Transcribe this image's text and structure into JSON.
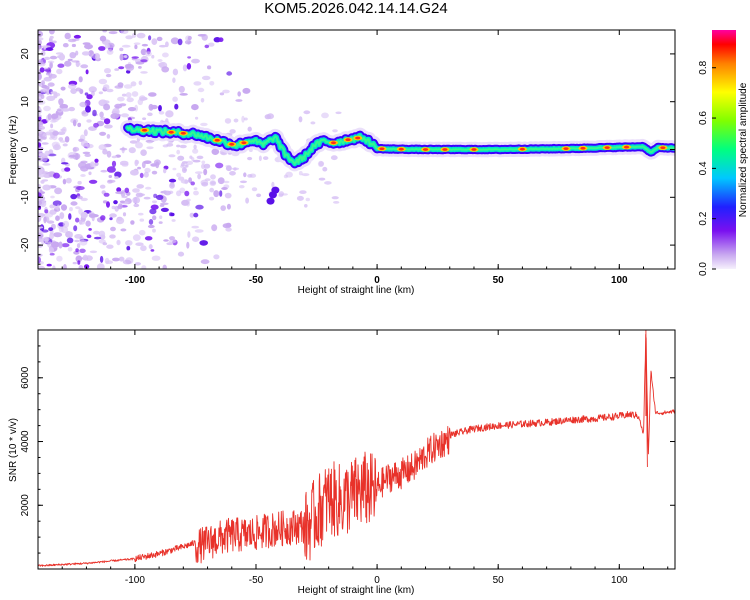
{
  "title": "KOM5.2026.042.14.14.G24",
  "colors": {
    "snr_line": "#e8322a",
    "ridge_core": "#ff2a1a",
    "ridge_mid": "#00e0c8",
    "ridge_outer": "#3a00ff",
    "noise_light": "#c8a8f0",
    "noise_dark": "#5a10e8"
  },
  "chart_data": [
    {
      "type": "heatmap",
      "name": "spectrogram",
      "xlabel": "Height of straight line (km)",
      "ylabel": "Frequency (Hz)",
      "xlim": [
        -140,
        123
      ],
      "ylim": [
        -25,
        25
      ],
      "xticks": [
        -100,
        -50,
        0,
        50,
        100
      ],
      "xtick_labels": [
        "-100",
        "-50",
        "0",
        "50",
        "100"
      ],
      "yticks": [
        -20,
        -10,
        0,
        10,
        20
      ],
      "ytick_labels": [
        "-20",
        "-10",
        "0",
        "10",
        "20"
      ],
      "ridge": {
        "x": [
          -103,
          -95,
          -85,
          -75,
          -65,
          -58,
          -52,
          -47,
          -42,
          -38,
          -34,
          -30,
          -26,
          -22,
          -18,
          -14,
          -10,
          -6,
          -3,
          0,
          5,
          20,
          50,
          80,
          110,
          113,
          116,
          123
        ],
        "y": [
          4.2,
          4.0,
          3.6,
          3.2,
          1.8,
          0.8,
          2.0,
          1.0,
          2.6,
          -1.0,
          -2.8,
          -1.5,
          0.8,
          1.8,
          1.4,
          1.8,
          2.3,
          2.5,
          1.5,
          0.2,
          0.1,
          0.0,
          0.0,
          0.2,
          0.6,
          -0.6,
          0.4,
          0.3
        ]
      },
      "colorbar": {
        "label": "Normalized spectral amplitude",
        "range": [
          0.0,
          0.95
        ],
        "ticks": [
          0.0,
          0.2,
          0.4,
          0.6,
          0.8
        ],
        "tick_labels": [
          "0.0",
          "0.2",
          "0.4",
          "0.6",
          "0.8"
        ]
      }
    },
    {
      "type": "line",
      "name": "snr",
      "xlabel": "Height of straight line (km)",
      "ylabel": "SNR (10 * v/v)",
      "xlim": [
        -140,
        123
      ],
      "ylim": [
        0,
        7500
      ],
      "xticks": [
        -100,
        -50,
        0,
        50,
        100
      ],
      "xtick_labels": [
        "-100",
        "-50",
        "0",
        "50",
        "100"
      ],
      "yticks": [
        2000,
        4000,
        6000
      ],
      "ytick_labels": [
        "2000",
        "4000",
        "6000"
      ],
      "series": [
        {
          "name": "SNR",
          "x": [
            -140,
            -120,
            -100,
            -90,
            -80,
            -70,
            -65,
            -60,
            -55,
            -50,
            -45,
            -40,
            -35,
            -30,
            -25,
            -20,
            -15,
            -10,
            -5,
            0,
            5,
            10,
            15,
            20,
            25,
            30,
            35,
            40,
            50,
            60,
            70,
            80,
            90,
            100,
            105,
            108,
            110,
            111,
            112,
            113,
            115,
            118,
            123
          ],
          "y": [
            100,
            180,
            320,
            480,
            700,
            950,
            1100,
            1200,
            1200,
            1250,
            1350,
            1400,
            1450,
            1500,
            2000,
            2500,
            2400,
            2600,
            2800,
            2700,
            3000,
            3100,
            3300,
            3700,
            4000,
            4200,
            4300,
            4400,
            4500,
            4550,
            4600,
            4680,
            4720,
            4800,
            4850,
            4800,
            4200,
            7500,
            3500,
            6200,
            4900,
            4900,
            4950
          ]
        }
      ]
    }
  ]
}
